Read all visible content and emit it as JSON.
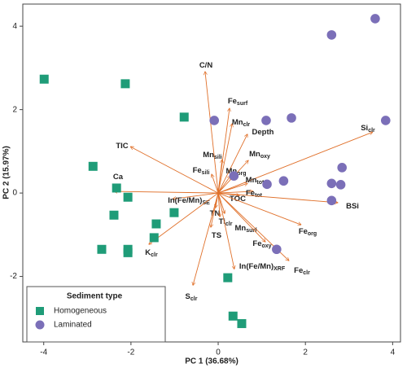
{
  "chart_data": {
    "type": "biplot",
    "xlabel": "PC 1 (36.68%)",
    "ylabel": "PC 2 (15.97%)",
    "xlim": [
      -4.48,
      4.18
    ],
    "ylim": [
      -3.57,
      4.53
    ],
    "xticks": [
      -4,
      -2,
      0,
      2,
      4
    ],
    "yticks": [
      -2,
      0,
      2,
      4
    ],
    "legend_title": "Sediment type",
    "legend": "bottom-left",
    "series": [
      {
        "name": "Homogeneous",
        "color": "#1f9c78",
        "marker": "square",
        "x": [
          -3.99,
          -2.13,
          -0.78,
          -2.87,
          -2.33,
          -2.07,
          -2.39,
          -1.42,
          -1.01,
          -1.47,
          -2.67,
          -2.07,
          -2.07,
          0.22,
          0.34,
          0.54
        ],
        "values": [
          2.73,
          2.62,
          1.82,
          0.64,
          0.12,
          -0.1,
          -0.53,
          -0.74,
          -0.47,
          -1.07,
          -1.35,
          -1.35,
          -1.43,
          -2.03,
          -2.95,
          -3.13
        ]
      },
      {
        "name": "Laminated",
        "color": "#7b6fb8",
        "marker": "circle",
        "x": [
          3.6,
          2.6,
          3.84,
          -0.09,
          1.1,
          1.68,
          2.84,
          0.36,
          1.12,
          1.5,
          2.6,
          2.81,
          2.6,
          1.34
        ],
        "values": [
          4.18,
          3.79,
          1.74,
          1.74,
          1.74,
          1.8,
          0.61,
          0.41,
          0.21,
          0.29,
          0.23,
          0.2,
          -0.18,
          -1.35
        ]
      }
    ],
    "arrow_color": "#e0702a",
    "loadings": [
      {
        "name": "C/N",
        "x": -0.3,
        "y": 2.91
      },
      {
        "name": "Fe",
        "sub": "surf",
        "x": 0.26,
        "y": 2.03
      },
      {
        "name": "Mn",
        "sub": "clr",
        "x": 0.32,
        "y": 1.66
      },
      {
        "name": "Depth",
        "x": 0.67,
        "y": 1.41
      },
      {
        "name": "Si",
        "sub": "clr",
        "x": 3.54,
        "y": 1.46
      },
      {
        "name": "TIC",
        "x": -2.01,
        "y": 1.11
      },
      {
        "name": "Mn",
        "sub": "sili",
        "x": 0.09,
        "y": 0.8
      },
      {
        "name": "Mn",
        "sub": "oxy",
        "x": 0.69,
        "y": 0.78
      },
      {
        "name": "Fe",
        "sub": "sili",
        "x": -0.15,
        "y": 0.45
      },
      {
        "name": "Mn",
        "sub": "org",
        "x": 0.28,
        "y": 0.41
      },
      {
        "name": "Mn",
        "sub": "tot",
        "x": 0.67,
        "y": 0.23
      },
      {
        "name": "Ca",
        "x": -2.39,
        "y": 0.04
      },
      {
        "name": "Fe",
        "sub": "tot",
        "x": 0.8,
        "y": 0.04
      },
      {
        "name": "TOC",
        "x": 0.49,
        "y": -0.06
      },
      {
        "name": "In(Fe/Mn)",
        "sub": "SE",
        "x": -1.04,
        "y": -0.14
      },
      {
        "name": "BSi",
        "x": 2.74,
        "y": -0.23
      },
      {
        "name": "TN",
        "x": -0.06,
        "y": -0.35
      },
      {
        "name": "Ti",
        "sub": "clr",
        "x": 0.04,
        "y": -0.57
      },
      {
        "name": "Mn",
        "sub": "surf",
        "x": 0.15,
        "y": -0.49
      },
      {
        "name": "Fe",
        "sub": "org",
        "x": 1.9,
        "y": -0.76
      },
      {
        "name": "TS",
        "x": -0.17,
        "y": -0.82
      },
      {
        "name": "Fe",
        "sub": "oxy",
        "x": 1.08,
        "y": -1.17
      },
      {
        "name": "K",
        "sub": "clr",
        "x": -1.59,
        "y": -1.23
      },
      {
        "name": "In(Fe/Mn)",
        "sub": "XRF",
        "x": 0.37,
        "y": -1.82
      },
      {
        "name": "Fe",
        "sub": "clr",
        "x": 1.62,
        "y": -1.62
      },
      {
        "name": "S",
        "sub": "clr",
        "x": -0.58,
        "y": -2.21
      }
    ]
  }
}
